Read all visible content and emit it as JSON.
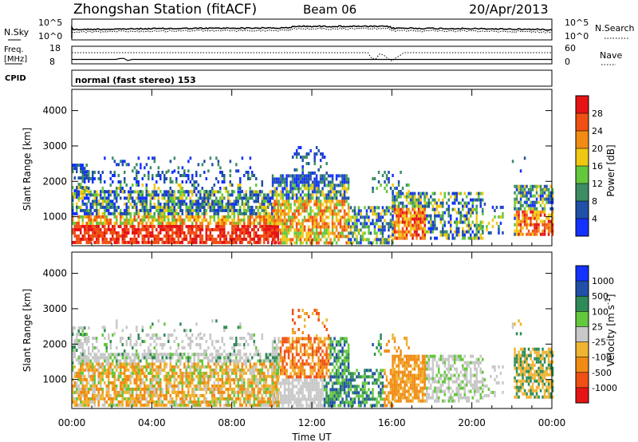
{
  "header": {
    "title": "Zhongshan Station (fitACF)",
    "beam": "Beam 06",
    "date": "20/Apr/2013"
  },
  "aux": {
    "nsky_label": "N.Sky",
    "nsearch_label": "N.Search",
    "noise_ticks_left": [
      "10^5",
      "10^0"
    ],
    "noise_ticks_right": [
      "10^5",
      "10^0"
    ],
    "freq_label_1": "Freq.",
    "freq_label_2": "[MHz]",
    "freq_ticks_left": [
      "18",
      "8"
    ],
    "nave_ticks_right": [
      "60",
      "0"
    ],
    "nave_label": "Nave",
    "cpid_label": "CPID",
    "cpid_text": "normal (fast stereo) 153"
  },
  "colors": {
    "power": [
      "#1432ff",
      "#2050a8",
      "#3c8c64",
      "#64c83c",
      "#f0c814",
      "#f08c14",
      "#f05014",
      "#e61414"
    ],
    "velocity": [
      "#e61414",
      "#f05014",
      "#f08c14",
      "#f0b432",
      "#c8c8c8",
      "#64c83c",
      "#2e8b57",
      "#2050a8",
      "#1432ff"
    ]
  },
  "chart_data": [
    {
      "type": "heatmap",
      "title": "Power",
      "ylabel": "Slant Range [km]",
      "ylim": [
        180,
        4600
      ],
      "yticks": [
        "1000",
        "2000",
        "3000",
        "4000"
      ],
      "yticks_values": [
        1000,
        2000,
        3000,
        4000
      ],
      "xticks": [
        "00:00",
        "04:00",
        "08:00",
        "12:00",
        "16:00",
        "20:00",
        "00:00"
      ],
      "xticks_values": [
        0,
        4,
        8,
        12,
        16,
        20,
        24
      ],
      "xlim": [
        0,
        24
      ],
      "colorbar": {
        "label": "Power [dB]",
        "ticks": [
          "4",
          "8",
          "12",
          "16",
          "20",
          "24",
          "28"
        ],
        "ticks_values": [
          4,
          8,
          12,
          16,
          20,
          24,
          28
        ],
        "range": [
          0,
          32
        ]
      }
    },
    {
      "type": "heatmap",
      "title": "Velocity",
      "ylabel": "Slant Range [km]",
      "ylim": [
        180,
        4600
      ],
      "yticks": [
        "1000",
        "2000",
        "3000",
        "4000"
      ],
      "yticks_values": [
        1000,
        2000,
        3000,
        4000
      ],
      "xticks": [
        "00:00",
        "04:00",
        "08:00",
        "12:00",
        "16:00",
        "20:00",
        "00:00"
      ],
      "xticks_values": [
        0,
        4,
        8,
        12,
        16,
        20,
        24
      ],
      "xlim": [
        0,
        24
      ],
      "xlabel": "Time UT",
      "colorbar": {
        "label": "Velocity [m s^-1]",
        "ticks": [
          "-1000",
          "-500",
          "-100",
          "-25",
          "25",
          "100",
          "500",
          "1000"
        ],
        "range": [
          -1250,
          1250
        ]
      }
    }
  ]
}
